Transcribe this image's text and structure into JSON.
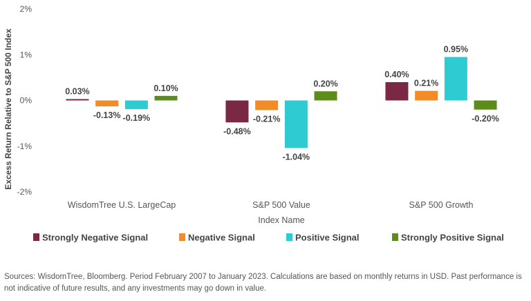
{
  "chart_data": {
    "type": "bar",
    "title": "",
    "xlabel": "Index Name",
    "ylabel": "Excess Return Relative to S&P 500 Index",
    "ylim": [
      -2,
      2
    ],
    "yticks": [
      "2%",
      "1%",
      "0%",
      "-1%",
      "-2%"
    ],
    "ytick_values": [
      2,
      1,
      0,
      -1,
      -2
    ],
    "categories": [
      "WisdomTree U.S. LargeCap",
      "S&P 500 Value",
      "S&P 500 Growth"
    ],
    "series": [
      {
        "name": "Strongly Negative Signal",
        "color": "#7b2845",
        "values": [
          0.03,
          -0.48,
          0.4
        ],
        "labels": [
          "0.03%",
          "-0.48%",
          "0.40%"
        ]
      },
      {
        "name": "Negative Signal",
        "color": "#f28c28",
        "values": [
          -0.13,
          -0.21,
          0.21
        ],
        "labels": [
          "-0.13%",
          "-0.21%",
          "0.21%"
        ]
      },
      {
        "name": "Positive Signal",
        "color": "#2ecbd3",
        "values": [
          -0.19,
          -1.04,
          0.95
        ],
        "labels": [
          "-0.19%",
          "-1.04%",
          "0.95%"
        ]
      },
      {
        "name": "Strongly Positive Signal",
        "color": "#5e8c1a",
        "values": [
          0.1,
          0.2,
          -0.2
        ],
        "labels": [
          "0.10%",
          "0.20%",
          "-0.20%"
        ]
      }
    ],
    "legend_position": "bottom"
  },
  "source_note": "Sources: WisdomTree, Bloomberg. Period February 2007 to January 2023. Calculations are based on monthly returns in USD. Past performance is not indicative of future results, and any investments may go down in value."
}
